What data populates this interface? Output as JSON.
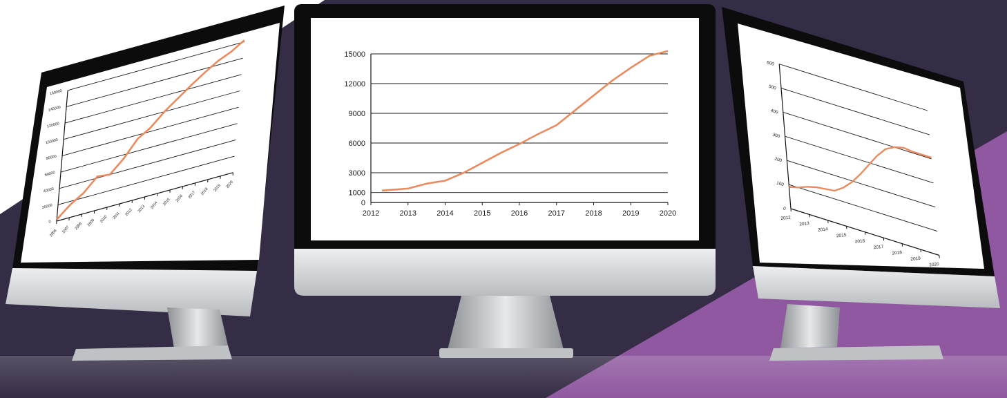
{
  "colors": {
    "background": "#352c45",
    "band": "#8f58a0",
    "line": "#e98a5f",
    "screen": "#ffffff",
    "bezel": "#0c0c0c",
    "chin": "#d4d6d8",
    "stand": "#c4c6c8"
  },
  "monitors": [
    {
      "name": "left-monitor",
      "chart_data": {
        "type": "line",
        "title": "",
        "xlabel": "",
        "ylabel": "",
        "x_ticks": [
          "2006",
          "2007",
          "2008",
          "2009",
          "2010",
          "2011",
          "2012",
          "2013",
          "2014",
          "2015",
          "2016",
          "2017",
          "2018",
          "2019",
          "2020"
        ],
        "y_ticks": [
          "0",
          "20000",
          "40000",
          "60000",
          "80000",
          "100000",
          "120000",
          "140000",
          "160000"
        ],
        "ylim": [
          0,
          160000
        ],
        "grid": true,
        "legend": "none",
        "series": [
          {
            "x": [
              2006,
              2007,
              2008,
              2009,
              2010,
              2011,
              2012,
              2013,
              2014,
              2015,
              2016,
              2017,
              2018,
              2019,
              2020
            ],
            "values": [
              2000,
              16000,
              26000,
              42000,
              40000,
              55000,
              75000,
              85000,
              100000,
              112000,
              124000,
              135000,
              145000,
              152000,
              162000
            ]
          }
        ]
      }
    },
    {
      "name": "center-monitor",
      "chart_data": {
        "type": "line",
        "title": "",
        "xlabel": "",
        "ylabel": "",
        "x_ticks": [
          "2012",
          "2013",
          "2014",
          "2015",
          "2016",
          "2017",
          "2018",
          "2019",
          "2020"
        ],
        "y_ticks": [
          "0",
          "1000",
          "3000",
          "6000",
          "9000",
          "12000",
          "15000"
        ],
        "ylim": [
          0,
          15000
        ],
        "grid": true,
        "legend": "none",
        "series": [
          {
            "x": [
              2012.3,
              2013,
              2013.5,
              2014,
              2014.5,
              2015,
              2015.5,
              2016,
              2016.5,
              2017,
              2017.5,
              2018,
              2018.5,
              2019,
              2019.5,
              2020
            ],
            "values": [
              1200,
              1400,
              1900,
              2200,
              3000,
              4000,
              5000,
              5900,
              6900,
              7800,
              9300,
              10800,
              12300,
              13600,
              14800,
              15300
            ]
          }
        ]
      }
    },
    {
      "name": "right-monitor",
      "chart_data": {
        "type": "line",
        "title": "",
        "xlabel": "",
        "ylabel": "",
        "x_ticks": [
          "2012",
          "2013",
          "2014",
          "2015",
          "2016",
          "2017",
          "2018",
          "2019",
          "2020"
        ],
        "y_ticks": [
          "0",
          "100",
          "200",
          "300",
          "400",
          "500",
          "600"
        ],
        "ylim": [
          0,
          600
        ],
        "grid": true,
        "legend": "none",
        "series": [
          {
            "x": [
              2012,
              2012.5,
              2013,
              2013.5,
              2014,
              2014.5,
              2015,
              2015.5,
              2016,
              2016.5,
              2017,
              2017.5,
              2018,
              2018.5,
              2019,
              2020
            ],
            "values": [
              90,
              100,
              115,
              125,
              130,
              135,
              160,
              195,
              240,
              290,
              340,
              380,
              400,
              410,
              405,
              405
            ]
          }
        ]
      }
    }
  ]
}
